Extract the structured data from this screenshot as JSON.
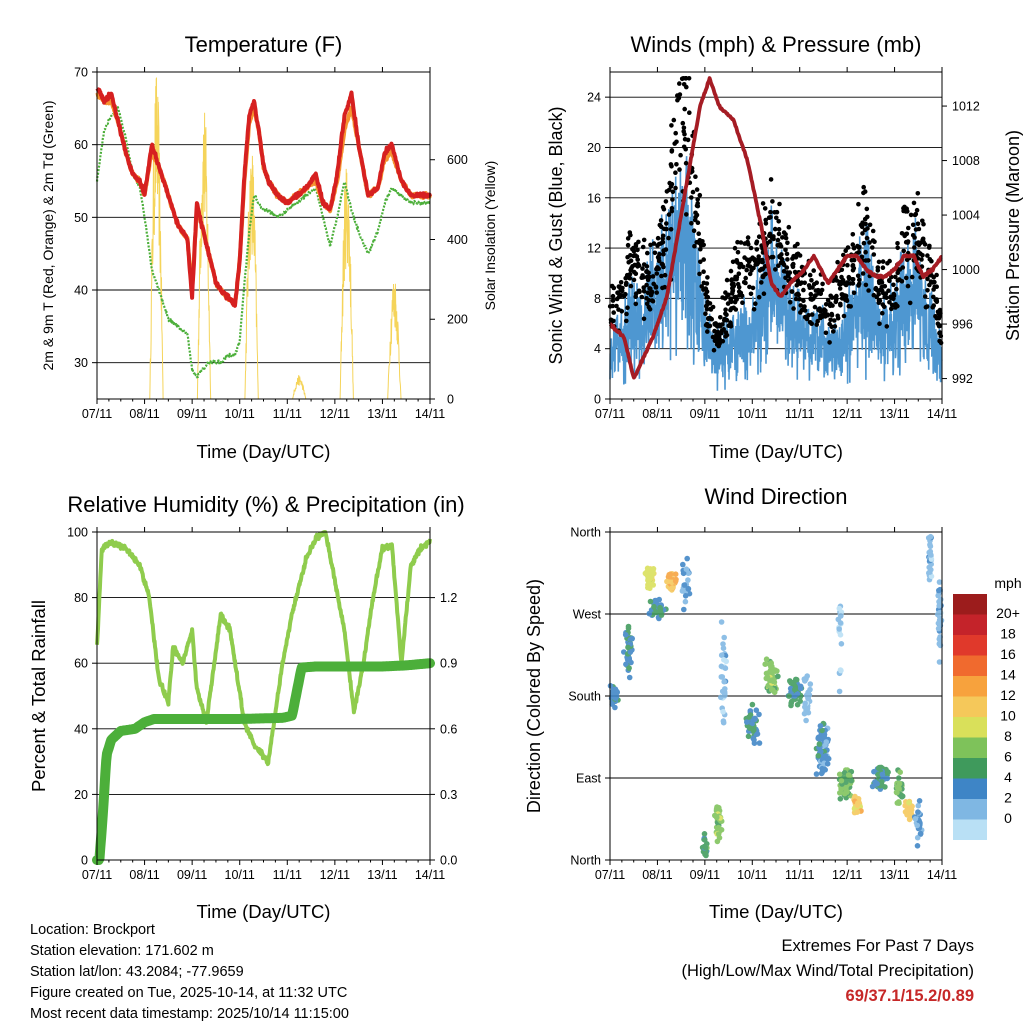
{
  "chart_data": [
    {
      "type": "line",
      "title": "Temperature (F)",
      "xlabel": "Time (Day/UTC)",
      "ylabel": "2m & 9m T (Red, Orange) & 2m Td (Green)",
      "ylabel_right": "Solar Insolation (Yellow)",
      "x_ticks": [
        "07/11",
        "08/11",
        "09/11",
        "10/11",
        "11/11",
        "12/11",
        "13/11",
        "14/11"
      ],
      "ylim": [
        25,
        70
      ],
      "yticks": [
        30,
        40,
        50,
        60,
        70
      ],
      "ylim_right": [
        0,
        820
      ],
      "yticks_right": [
        0,
        200,
        400,
        600
      ],
      "x": [
        0,
        0.15,
        0.3,
        0.45,
        0.6,
        0.75,
        0.9,
        1.0,
        1.15,
        1.3,
        1.5,
        1.7,
        1.9,
        2.0,
        2.1,
        2.2,
        2.35,
        2.5,
        2.6,
        2.75,
        2.9,
        3.0,
        3.1,
        3.2,
        3.3,
        3.4,
        3.5,
        3.6,
        3.8,
        4.0,
        4.2,
        4.4,
        4.6,
        4.75,
        4.9,
        5.05,
        5.2,
        5.35,
        5.5,
        5.7,
        5.9,
        6.05,
        6.2,
        6.4,
        6.6,
        6.8,
        7.0
      ],
      "series": [
        {
          "name": "2m T",
          "color": "#d62020",
          "values": [
            68,
            66,
            67,
            63,
            59,
            56,
            55,
            53,
            60,
            57,
            53,
            49,
            47,
            39,
            52,
            49,
            45,
            41,
            40,
            39,
            38,
            44,
            56,
            64,
            66,
            62,
            57,
            55,
            53,
            52,
            53,
            54,
            56,
            52,
            51,
            56,
            64,
            67,
            60,
            53,
            54,
            59,
            60,
            55,
            53,
            53,
            53
          ]
        },
        {
          "name": "9m T",
          "color": "#f5922f",
          "values": [
            67,
            66,
            66,
            63,
            59,
            56,
            55,
            53,
            59,
            57,
            53,
            49,
            47,
            40,
            51,
            49,
            45,
            41,
            40,
            39,
            38,
            44,
            55,
            63,
            65,
            62,
            57,
            55,
            53,
            52,
            53,
            54,
            55,
            52,
            51,
            55,
            62,
            65,
            60,
            53,
            54,
            58,
            59,
            55,
            53,
            53,
            53
          ]
        },
        {
          "name": "2m Td",
          "color": "#4caf3a",
          "values": [
            55,
            62,
            64,
            65,
            61,
            56,
            54,
            50,
            43,
            40,
            36,
            35,
            34,
            29,
            28,
            29,
            30,
            30,
            30,
            31,
            31,
            33,
            41,
            48,
            53,
            52,
            51,
            51,
            50,
            51,
            52,
            53,
            54,
            50,
            46,
            50,
            55,
            51,
            48,
            45,
            48,
            52,
            54,
            53,
            52,
            52,
            52
          ]
        }
      ],
      "solar_peaks": [
        {
          "day": 0.45,
          "value": 0
        },
        {
          "day": 1.25,
          "value": 830
        },
        {
          "day": 2.25,
          "value": 760
        },
        {
          "day": 3.25,
          "value": 650
        },
        {
          "day": 4.25,
          "value": 60
        },
        {
          "day": 5.25,
          "value": 610
        },
        {
          "day": 6.25,
          "value": 320
        }
      ]
    },
    {
      "type": "line",
      "title": "Winds (mph) & Pressure (mb)",
      "xlabel": "Time (Day/UTC)",
      "ylabel": "Sonic Wind & Gust (Blue, Black)",
      "ylabel_right": "Station Pressure (Maroon)",
      "x_ticks": [
        "07/11",
        "08/11",
        "09/11",
        "10/11",
        "11/11",
        "12/11",
        "13/11",
        "14/11"
      ],
      "ylim": [
        0,
        26
      ],
      "yticks": [
        0,
        4,
        8,
        12,
        16,
        20,
        24
      ],
      "ylim_right": [
        990.5,
        1014.5
      ],
      "yticks_right": [
        992,
        996,
        1000,
        1004,
        1008,
        1012
      ],
      "x": [
        0,
        0.3,
        0.5,
        0.9,
        1.2,
        1.6,
        1.9,
        2.1,
        2.3,
        2.6,
        2.9,
        3.2,
        3.4,
        3.6,
        3.8,
        4.1,
        4.3,
        4.6,
        4.8,
        5.0,
        5.2,
        5.4,
        5.6,
        5.8,
        6.0,
        6.2,
        6.4,
        6.6,
        6.8,
        7.0
      ],
      "series": [
        {
          "name": "Sonic Wind",
          "color": "#4e97d1",
          "values": [
            3.5,
            5,
            6,
            7,
            10,
            12,
            7,
            4,
            3.5,
            4.5,
            5,
            7,
            9,
            8,
            6,
            5,
            4.5,
            4,
            4,
            5,
            7,
            9,
            6,
            5,
            6,
            8,
            9,
            7,
            5,
            3
          ]
        },
        {
          "name": "Gust",
          "color": "#000000",
          "values": [
            7,
            9,
            11,
            9,
            14,
            22,
            12,
            6,
            5,
            9,
            10,
            11,
            13,
            12,
            10,
            9,
            8,
            7,
            8,
            9,
            11,
            14,
            10,
            8,
            9,
            12,
            13,
            11,
            9,
            5
          ]
        },
        {
          "name": "Station Pressure",
          "color": "#a51c24",
          "values": [
            996,
            995,
            992,
            995,
            998,
            1006,
            1012,
            1014,
            1012,
            1011,
            1008,
            1003,
            999,
            998,
            999,
            1000,
            1001,
            999,
            1000,
            1001,
            1001,
            1000,
            999.5,
            999.5,
            1000,
            1001,
            1001,
            999.5,
            1000,
            1001
          ]
        }
      ]
    },
    {
      "type": "line",
      "title": "Relative Humidity (%) & Precipitation (in)",
      "xlabel": "Time (Day/UTC)",
      "ylabel": "Percent & Total Rainfall",
      "x_ticks": [
        "07/11",
        "08/11",
        "09/11",
        "10/11",
        "11/11",
        "12/11",
        "13/11",
        "14/11"
      ],
      "ylim": [
        0,
        100
      ],
      "yticks": [
        0,
        20,
        40,
        60,
        80,
        100
      ],
      "ylim_right": [
        0,
        1.5
      ],
      "yticks_right": [
        "0.0",
        "0.3",
        "0.6",
        "0.9",
        "1.2"
      ],
      "series": [
        {
          "name": "Relative Humidity",
          "color": "#8fcc4d",
          "x": [
            0,
            0.1,
            0.3,
            0.6,
            0.9,
            1.1,
            1.3,
            1.5,
            1.6,
            1.8,
            2.0,
            2.1,
            2.3,
            2.6,
            2.8,
            2.9,
            3.1,
            3.3,
            3.6,
            3.9,
            4.1,
            4.4,
            4.6,
            4.8,
            5.0,
            5.2,
            5.4,
            5.6,
            5.8,
            6.0,
            6.2,
            6.4,
            6.6,
            6.8,
            7.0
          ],
          "values": [
            65,
            95,
            97,
            95,
            90,
            80,
            55,
            48,
            65,
            60,
            70,
            52,
            42,
            75,
            70,
            60,
            42,
            35,
            30,
            60,
            75,
            92,
            98,
            100,
            85,
            70,
            45,
            60,
            80,
            95,
            96,
            60,
            90,
            95,
            97
          ]
        },
        {
          "name": "Total Rainfall",
          "color": "#4caf3a",
          "x": [
            0,
            0.05,
            0.12,
            0.2,
            0.3,
            0.5,
            0.8,
            1.0,
            1.2,
            2.0,
            3.0,
            3.9,
            4.1,
            4.3,
            4.6,
            5.0,
            6.0,
            6.5,
            7.0
          ],
          "values": [
            0,
            0.0,
            0.2,
            0.48,
            0.55,
            0.59,
            0.6,
            0.63,
            0.645,
            0.645,
            0.645,
            0.65,
            0.66,
            0.88,
            0.885,
            0.885,
            0.885,
            0.89,
            0.9
          ]
        }
      ]
    },
    {
      "type": "scatter",
      "title": "Wind Direction",
      "xlabel": "Time (Day/UTC)",
      "ylabel": "Direction (Colored By Speed)",
      "x_ticks": [
        "07/11",
        "08/11",
        "09/11",
        "10/11",
        "11/11",
        "12/11",
        "13/11",
        "14/11"
      ],
      "ylim": [
        0,
        360
      ],
      "yticks": [
        {
          "value": 0,
          "label": "North"
        },
        {
          "value": 90,
          "label": "East"
        },
        {
          "value": 180,
          "label": "South"
        },
        {
          "value": 270,
          "label": "West"
        },
        {
          "value": 360,
          "label": "North"
        }
      ],
      "legend_title": "mph",
      "legend_labels": [
        "20+",
        "18",
        "16",
        "14",
        "12",
        "10",
        "8",
        "6",
        "4",
        "2",
        "0"
      ],
      "legend_colors": [
        "#9c1c1c",
        "#c4232a",
        "#e0392b",
        "#f06a2e",
        "#f7a23d",
        "#f5c85a",
        "#d9e05a",
        "#7ec25a",
        "#3f9a5c",
        "#3e85c6",
        "#7fb7e3",
        "#b9e0f5"
      ],
      "clusters": [
        {
          "day": 0.1,
          "dir": 180,
          "dirSpread": 15,
          "timeSpread": 0.12,
          "speed": 4,
          "n": 40
        },
        {
          "day": 0.4,
          "dir": 230,
          "dirSpread": 35,
          "timeSpread": 0.12,
          "speed": 5,
          "n": 40
        },
        {
          "day": 0.85,
          "dir": 310,
          "dirSpread": 15,
          "timeSpread": 0.12,
          "speed": 10,
          "n": 60
        },
        {
          "day": 1.3,
          "dir": 305,
          "dirSpread": 15,
          "timeSpread": 0.12,
          "speed": 13,
          "n": 50
        },
        {
          "day": 1.0,
          "dir": 275,
          "dirSpread": 15,
          "timeSpread": 0.2,
          "speed": 5,
          "n": 50
        },
        {
          "day": 1.6,
          "dir": 300,
          "dirSpread": 40,
          "timeSpread": 0.12,
          "speed": 3,
          "n": 25
        },
        {
          "day": 2.0,
          "dir": 15,
          "dirSpread": 20,
          "timeSpread": 0.08,
          "speed": 6,
          "n": 25
        },
        {
          "day": 2.3,
          "dir": 45,
          "dirSpread": 30,
          "timeSpread": 0.12,
          "speed": 8,
          "n": 45
        },
        {
          "day": 2.4,
          "dir": 200,
          "dirSpread": 80,
          "timeSpread": 0.08,
          "speed": 1.5,
          "n": 30
        },
        {
          "day": 3.0,
          "dir": 150,
          "dirSpread": 30,
          "timeSpread": 0.2,
          "speed": 5,
          "n": 45
        },
        {
          "day": 3.4,
          "dir": 200,
          "dirSpread": 25,
          "timeSpread": 0.2,
          "speed": 8,
          "n": 60
        },
        {
          "day": 3.9,
          "dir": 185,
          "dirSpread": 20,
          "timeSpread": 0.2,
          "speed": 5,
          "n": 50
        },
        {
          "day": 4.15,
          "dir": 175,
          "dirSpread": 40,
          "timeSpread": 0.12,
          "speed": 2,
          "n": 25
        },
        {
          "day": 4.5,
          "dir": 120,
          "dirSpread": 40,
          "timeSpread": 0.2,
          "speed": 4,
          "n": 70
        },
        {
          "day": 5.0,
          "dir": 85,
          "dirSpread": 25,
          "timeSpread": 0.2,
          "speed": 7,
          "n": 60
        },
        {
          "day": 5.2,
          "dir": 60,
          "dirSpread": 15,
          "timeSpread": 0.1,
          "speed": 12,
          "n": 45
        },
        {
          "day": 5.7,
          "dir": 90,
          "dirSpread": 20,
          "timeSpread": 0.2,
          "speed": 5,
          "n": 60
        },
        {
          "day": 6.3,
          "dir": 55,
          "dirSpread": 15,
          "timeSpread": 0.1,
          "speed": 12,
          "n": 40
        },
        {
          "day": 6.1,
          "dir": 80,
          "dirSpread": 25,
          "timeSpread": 0.12,
          "speed": 7,
          "n": 40
        },
        {
          "day": 6.5,
          "dir": 40,
          "dirSpread": 40,
          "timeSpread": 0.1,
          "speed": 3,
          "n": 25
        },
        {
          "day": 6.75,
          "dir": 330,
          "dirSpread": 35,
          "timeSpread": 0.06,
          "speed": 2,
          "n": 30
        },
        {
          "day": 6.95,
          "dir": 270,
          "dirSpread": 60,
          "timeSpread": 0.05,
          "speed": 2.5,
          "n": 35
        },
        {
          "day": 4.85,
          "dir": 250,
          "dirSpread": 100,
          "timeSpread": 0.05,
          "speed": 1,
          "n": 20
        }
      ]
    }
  ],
  "station": {
    "location": "Location: Brockport",
    "elevation": "Station elevation: 171.602 m",
    "latlon": "Station lat/lon: 43.2084; -77.9659",
    "created": "Figure created on Tue, 2025-10-14, at 11:32 UTC",
    "recent": "Most recent data timestamp: 2025/10/14 11:15:00"
  },
  "extremes": {
    "title": "Extremes For Past 7 Days",
    "subtitle": "(High/Low/Max Wind/Total Precipitation)",
    "values": "69/37.1/15.2/0.89"
  }
}
